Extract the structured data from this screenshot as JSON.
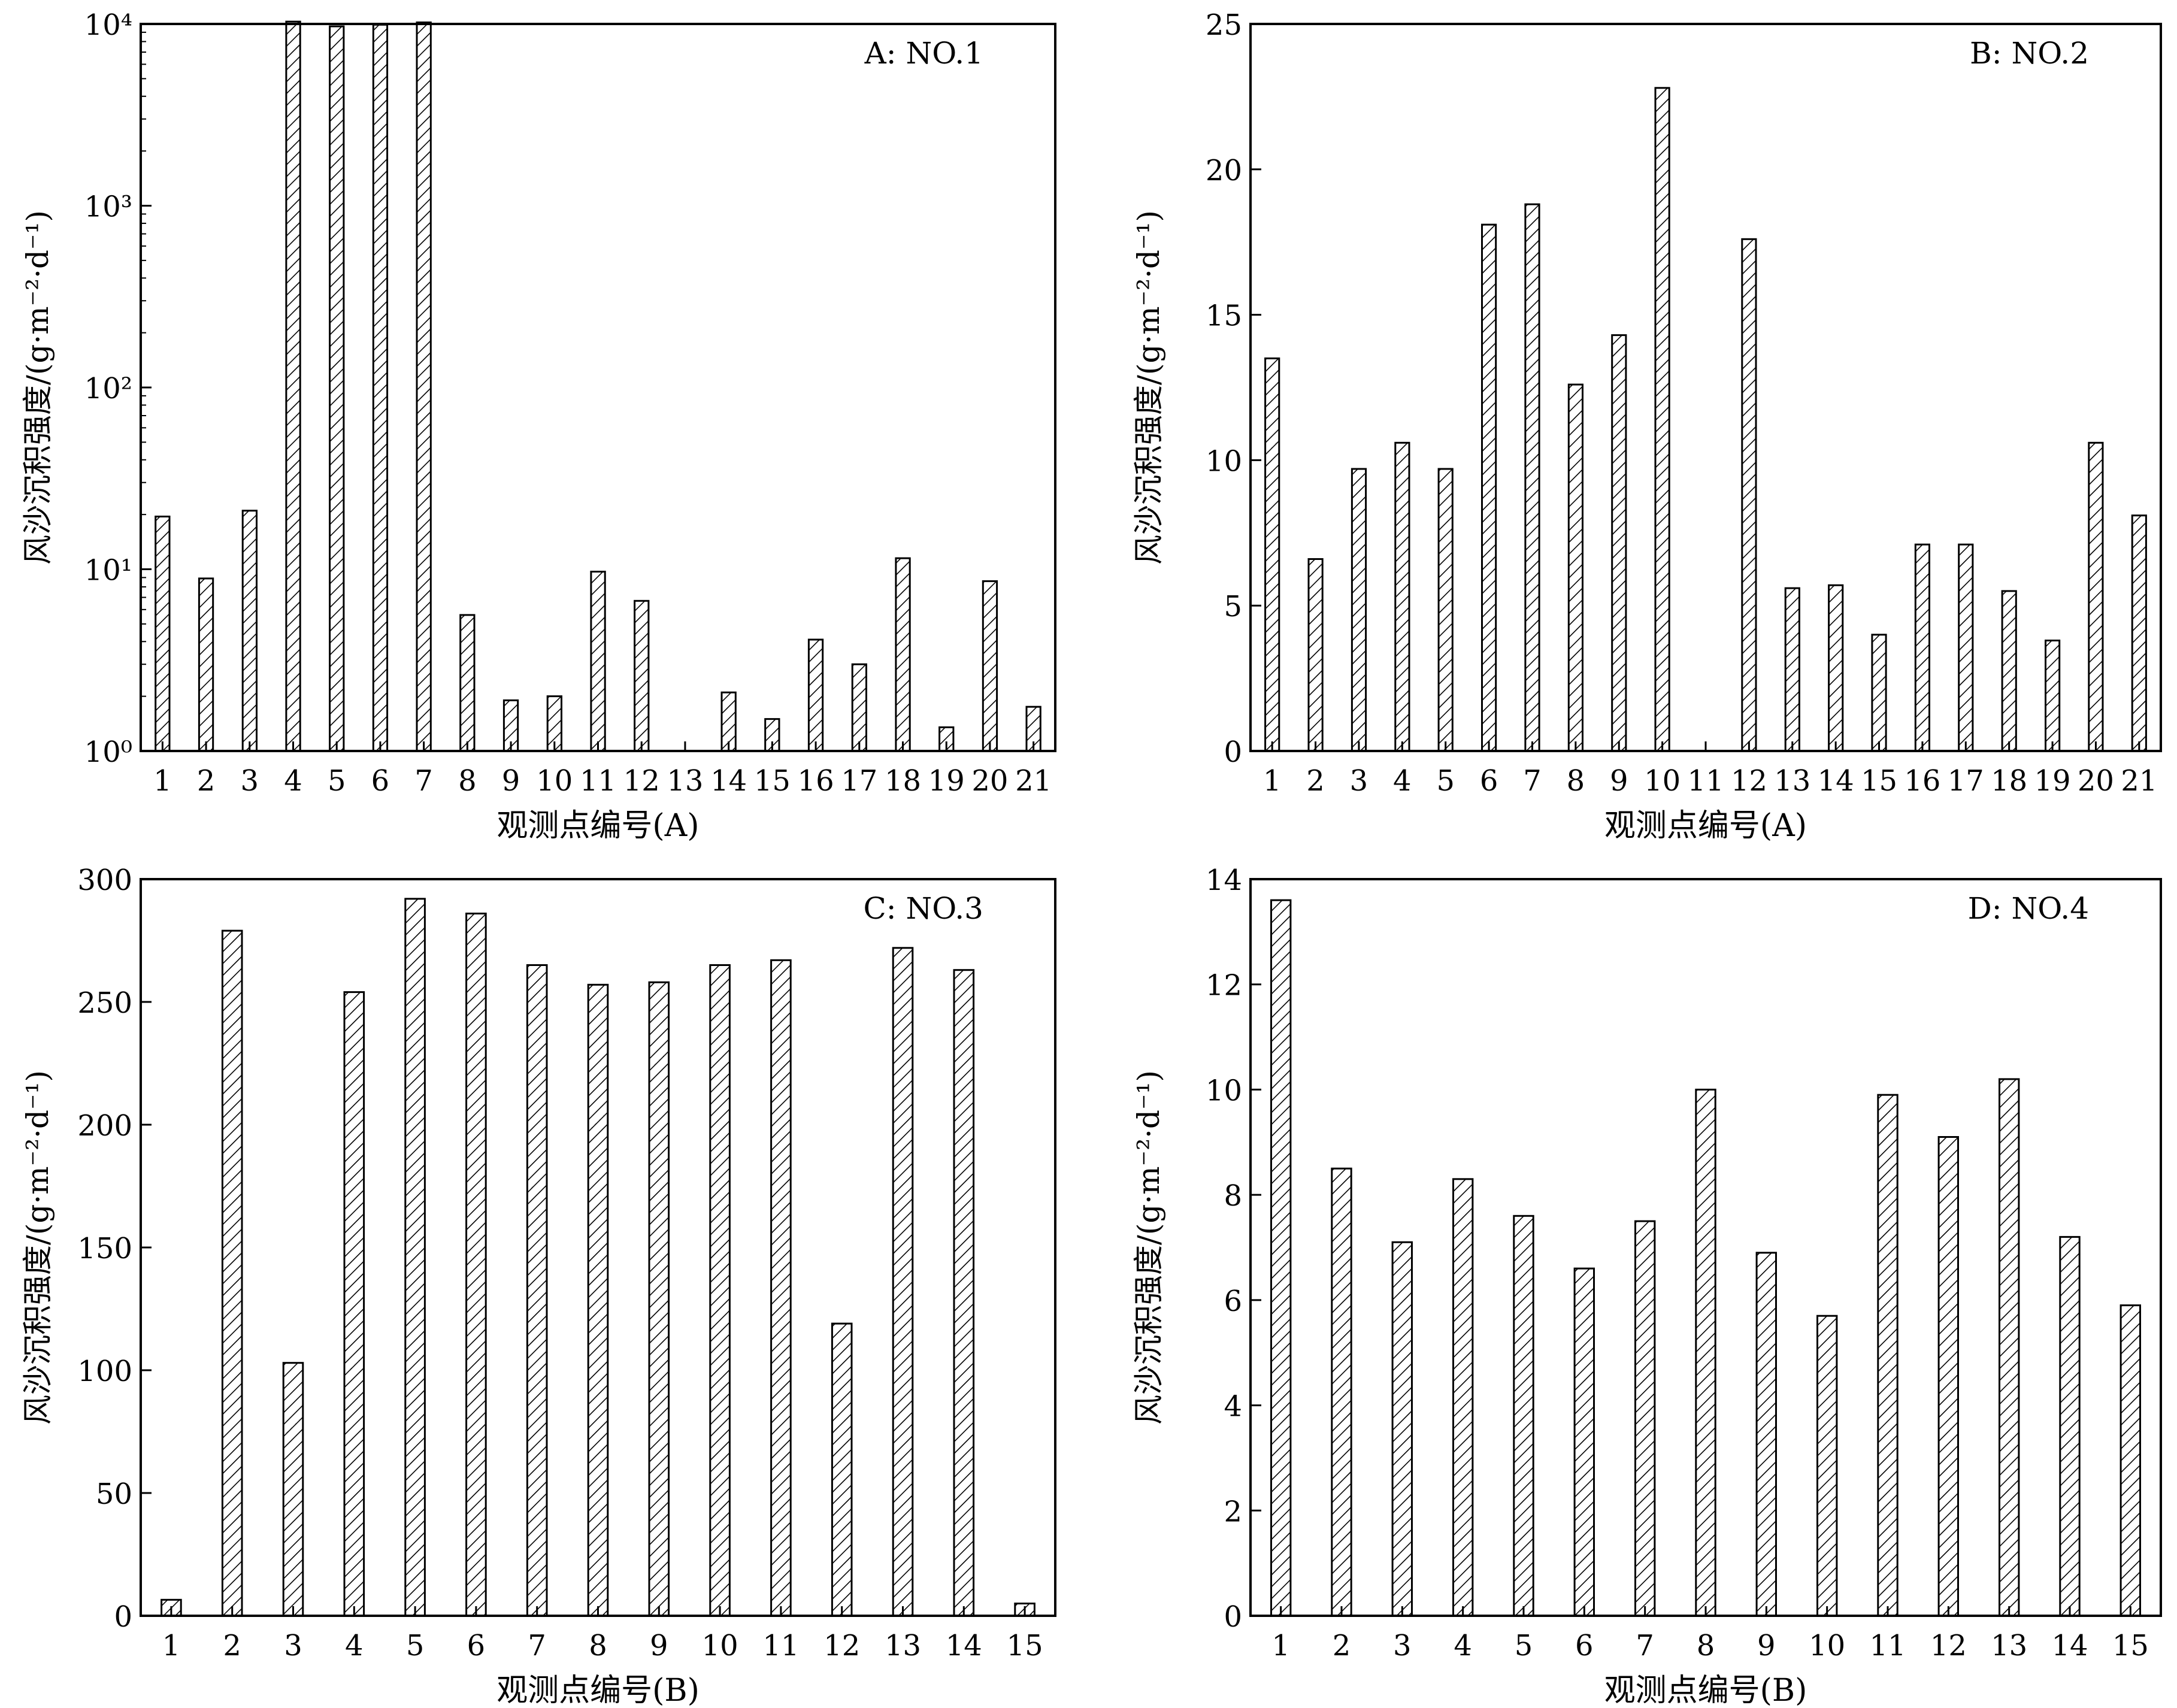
{
  "chart_data": [
    {
      "id": "A",
      "type": "bar",
      "title": "A: NO.1",
      "xlabel": "观测点编号(A)",
      "ylabel": "风沙沉积强度/(g·m⁻²·d⁻¹)",
      "yscale": "log",
      "ylim": [
        1,
        10000
      ],
      "ytick_labels": [
        "10⁰",
        "10¹",
        "10²",
        "10³",
        "10⁴"
      ],
      "categories": [
        "1",
        "2",
        "3",
        "4",
        "5",
        "6",
        "7",
        "8",
        "9",
        "10",
        "11",
        "12",
        "13",
        "14",
        "15",
        "16",
        "17",
        "18",
        "19",
        "20",
        "21"
      ],
      "values": [
        19.5,
        8.9,
        21,
        10300,
        9700,
        9900,
        10200,
        5.6,
        1.9,
        2.0,
        9.7,
        6.7,
        1.0,
        2.1,
        1.5,
        4.1,
        3.0,
        11.5,
        1.35,
        8.6,
        1.75
      ],
      "legend": "none",
      "grid": false
    },
    {
      "id": "B",
      "type": "bar",
      "title": "B: NO.2",
      "xlabel": "观测点编号(A)",
      "ylabel": "风沙沉积强度/(g·m⁻²·d⁻¹)",
      "yscale": "linear",
      "ylim": [
        0,
        25
      ],
      "yticks": [
        0,
        5,
        10,
        15,
        20,
        25
      ],
      "categories": [
        "1",
        "2",
        "3",
        "4",
        "5",
        "6",
        "7",
        "8",
        "9",
        "10",
        "11",
        "12",
        "13",
        "14",
        "15",
        "16",
        "17",
        "18",
        "19",
        "20",
        "21"
      ],
      "values": [
        13.5,
        6.6,
        9.7,
        10.6,
        9.7,
        18.1,
        18.8,
        12.6,
        14.3,
        22.8,
        0,
        17.6,
        5.6,
        5.7,
        4.0,
        7.1,
        7.1,
        5.5,
        3.8,
        10.6,
        8.1
      ],
      "legend": "none",
      "grid": false
    },
    {
      "id": "C",
      "type": "bar",
      "title": "C: NO.3",
      "xlabel": "观测点编号(B)",
      "ylabel": "风沙沉积强度/(g·m⁻²·d⁻¹)",
      "yscale": "linear",
      "ylim": [
        0,
        300
      ],
      "yticks": [
        0,
        50,
        100,
        150,
        200,
        250,
        300
      ],
      "categories": [
        "1",
        "2",
        "3",
        "4",
        "5",
        "6",
        "7",
        "8",
        "9",
        "10",
        "11",
        "12",
        "13",
        "14",
        "15"
      ],
      "values": [
        6.5,
        279,
        103,
        254,
        292,
        286,
        265,
        257,
        258,
        265,
        267,
        119,
        272,
        263,
        5
      ],
      "legend": "none",
      "grid": false
    },
    {
      "id": "D",
      "type": "bar",
      "title": "D: NO.4",
      "xlabel": "观测点编号(B)",
      "ylabel": "风沙沉积强度/(g·m⁻²·d⁻¹)",
      "yscale": "linear",
      "ylim": [
        0,
        14
      ],
      "yticks": [
        0,
        2,
        4,
        6,
        8,
        10,
        12,
        14
      ],
      "categories": [
        "1",
        "2",
        "3",
        "4",
        "5",
        "6",
        "7",
        "8",
        "9",
        "10",
        "11",
        "12",
        "13",
        "14",
        "15"
      ],
      "values": [
        13.6,
        8.5,
        7.1,
        8.3,
        7.6,
        6.6,
        7.5,
        10.0,
        6.9,
        5.7,
        9.9,
        9.1,
        10.2,
        7.2,
        5.9
      ],
      "legend": "none",
      "grid": false
    }
  ]
}
